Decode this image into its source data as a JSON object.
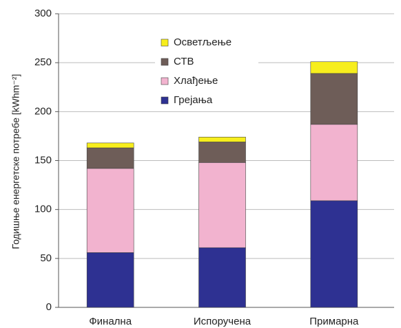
{
  "chart_data": {
    "type": "stacked_bar",
    "y_label": "Годишње енергетске потребе [kWhm⁻²]",
    "categories": [
      "Финална",
      "Испоручена",
      "Примарна"
    ],
    "series": [
      {
        "name": "Грејања",
        "color": "#2e3192",
        "values": [
          56,
          61,
          109
        ]
      },
      {
        "name": "Хлађење",
        "color": "#f2b3cf",
        "values": [
          86,
          87,
          78
        ]
      },
      {
        "name": "СТВ",
        "color": "#6e5d58",
        "values": [
          21,
          21,
          52
        ]
      },
      {
        "name": "Осветљење",
        "color": "#f7ee1d",
        "values": [
          5,
          5,
          12
        ]
      }
    ],
    "ylim": [
      0,
      300
    ],
    "yticks": [
      0,
      50,
      100,
      150,
      200,
      250,
      300
    ],
    "grid": true
  }
}
